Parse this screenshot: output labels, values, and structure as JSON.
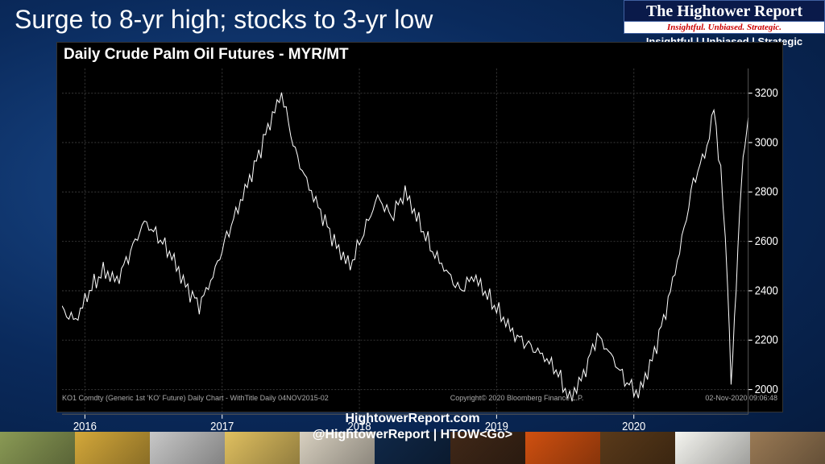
{
  "headline": "Surge to 8-yr high; stocks to 3-yr low",
  "brand": {
    "title": "The Hightower Report",
    "subtitle": "Insightful. Unbiased. Strategic.",
    "tagline": "Insightful | Unbiased | Strategic"
  },
  "chart": {
    "type": "line",
    "title": "Daily Crude Palm Oil Futures - MYR/MT",
    "background_color": "#000000",
    "grid_color": "#333333",
    "line_color": "#ffffff",
    "line_width": 1,
    "y_axis": {
      "position": "right",
      "ylim": [
        1900,
        3300
      ],
      "ticks": [
        2000,
        2200,
        2400,
        2600,
        2800,
        3000,
        3200
      ],
      "fontsize": 13,
      "color": "#ffffff"
    },
    "x_axis": {
      "type": "time",
      "start": "2015-11",
      "end": "2020-11",
      "ticks": [
        "2016",
        "2017",
        "2018",
        "2019",
        "2020"
      ],
      "fontsize": 13,
      "color": "#ffffff"
    },
    "series": [
      {
        "t": 0.0,
        "v": 2320
      },
      {
        "t": 0.02,
        "v": 2280
      },
      {
        "t": 0.04,
        "v": 2400
      },
      {
        "t": 0.06,
        "v": 2480
      },
      {
        "t": 0.08,
        "v": 2440
      },
      {
        "t": 0.1,
        "v": 2560
      },
      {
        "t": 0.12,
        "v": 2680
      },
      {
        "t": 0.14,
        "v": 2620
      },
      {
        "t": 0.16,
        "v": 2540
      },
      {
        "t": 0.18,
        "v": 2420
      },
      {
        "t": 0.2,
        "v": 2340
      },
      {
        "t": 0.22,
        "v": 2460
      },
      {
        "t": 0.24,
        "v": 2620
      },
      {
        "t": 0.26,
        "v": 2760
      },
      {
        "t": 0.28,
        "v": 2900
      },
      {
        "t": 0.3,
        "v": 3060
      },
      {
        "t": 0.32,
        "v": 3200
      },
      {
        "t": 0.33,
        "v": 3080
      },
      {
        "t": 0.34,
        "v": 2960
      },
      {
        "t": 0.36,
        "v": 2820
      },
      {
        "t": 0.38,
        "v": 2700
      },
      {
        "t": 0.4,
        "v": 2580
      },
      {
        "t": 0.42,
        "v": 2500
      },
      {
        "t": 0.44,
        "v": 2640
      },
      {
        "t": 0.46,
        "v": 2780
      },
      {
        "t": 0.48,
        "v": 2700
      },
      {
        "t": 0.5,
        "v": 2800
      },
      {
        "t": 0.52,
        "v": 2680
      },
      {
        "t": 0.54,
        "v": 2560
      },
      {
        "t": 0.56,
        "v": 2480
      },
      {
        "t": 0.58,
        "v": 2400
      },
      {
        "t": 0.6,
        "v": 2460
      },
      {
        "t": 0.62,
        "v": 2380
      },
      {
        "t": 0.64,
        "v": 2300
      },
      {
        "t": 0.66,
        "v": 2220
      },
      {
        "t": 0.68,
        "v": 2180
      },
      {
        "t": 0.7,
        "v": 2140
      },
      {
        "t": 0.72,
        "v": 2080
      },
      {
        "t": 0.74,
        "v": 1960
      },
      {
        "t": 0.76,
        "v": 2060
      },
      {
        "t": 0.78,
        "v": 2220
      },
      {
        "t": 0.8,
        "v": 2140
      },
      {
        "t": 0.82,
        "v": 2040
      },
      {
        "t": 0.84,
        "v": 1980
      },
      {
        "t": 0.86,
        "v": 2120
      },
      {
        "t": 0.88,
        "v": 2320
      },
      {
        "t": 0.9,
        "v": 2560
      },
      {
        "t": 0.92,
        "v": 2840
      },
      {
        "t": 0.94,
        "v": 2980
      },
      {
        "t": 0.95,
        "v": 3140
      },
      {
        "t": 0.96,
        "v": 2880
      },
      {
        "t": 0.97,
        "v": 2460
      },
      {
        "t": 0.975,
        "v": 2040
      },
      {
        "t": 0.98,
        "v": 2280
      },
      {
        "t": 0.985,
        "v": 2560
      },
      {
        "t": 0.99,
        "v": 2840
      },
      {
        "t": 0.995,
        "v": 3000
      },
      {
        "t": 1.0,
        "v": 3100
      }
    ],
    "source_left": "KO1 Comdty (Generic 1st 'KO' Future) Daily Chart - WithTitle  Daily 04NOV2015-02",
    "source_mid": "Copyright© 2020 Bloomberg Finance L.P.",
    "source_right": "02-Nov-2020 09:06:48"
  },
  "footer": {
    "line1": "HightowerReport.com",
    "line2": "@HightowerReport | HTOW<Go>",
    "thumbs": [
      "#8a9a55",
      "#d4a83a",
      "#c8c8c8",
      "#e0c060",
      "#d8d0c0",
      "#102848",
      "#402818",
      "#d05010",
      "#5a3a1a",
      "#f5f5f0",
      "#9a7a55"
    ]
  }
}
